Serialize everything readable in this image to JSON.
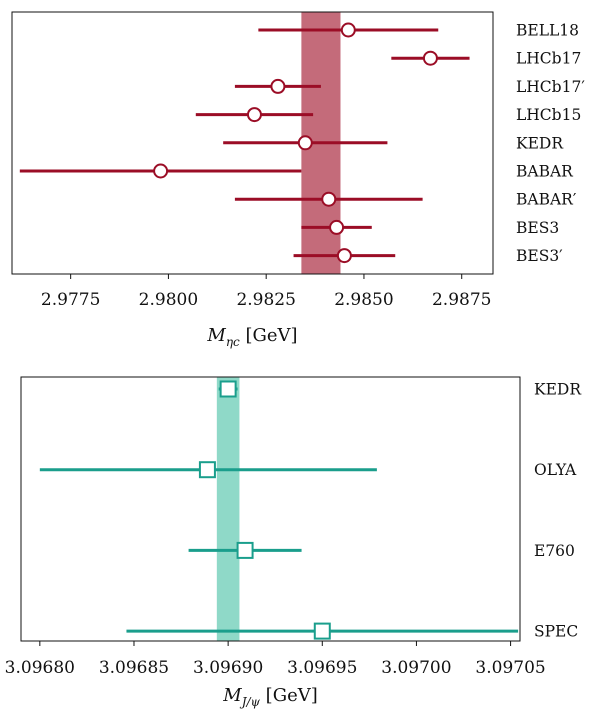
{
  "chart_data": [
    {
      "type": "scatter",
      "variant": "errorbar",
      "title": "",
      "xlabel": "M",
      "xlabel_sub": "ηc",
      "xlabel_unit": "[GeV]",
      "xlim": [
        2.976,
        2.9883
      ],
      "xticks": [
        2.9775,
        2.98,
        2.9825,
        2.985,
        2.9875
      ],
      "xtick_labels": [
        "2.9775",
        "2.9800",
        "2.9825",
        "2.9850",
        "2.9875"
      ],
      "marker": "circle",
      "color": "#9b0d26",
      "band": {
        "low": 2.9834,
        "high": 2.9844,
        "color": "#c46b7a"
      },
      "categories": [
        "BELL18",
        "LHCb17",
        "LHCb17′",
        "LHCb15",
        "KEDR",
        "BABAR",
        "BABAR′",
        "BES3",
        "BES3′"
      ],
      "values": [
        2.9846,
        2.9867,
        2.9828,
        2.9822,
        2.9835,
        2.9798,
        2.9841,
        2.9843,
        2.9845
      ],
      "err_low": [
        2.9823,
        2.9857,
        2.9817,
        2.9807,
        2.9814,
        2.9762,
        2.9817,
        2.9834,
        2.9832
      ],
      "err_high": [
        2.9869,
        2.9877,
        2.9839,
        2.9837,
        2.9856,
        2.9834,
        2.9865,
        2.9852,
        2.9858
      ],
      "grid": false
    },
    {
      "type": "scatter",
      "variant": "errorbar",
      "title": "",
      "xlabel": "M",
      "xlabel_sub": "J/ψ",
      "xlabel_unit": "[GeV]",
      "xlim": [
        3.09679,
        3.097055
      ],
      "xticks": [
        3.0968,
        3.09685,
        3.0969,
        3.09695,
        3.097,
        3.09705
      ],
      "xtick_labels": [
        "3.09680",
        "3.09685",
        "3.09690",
        "3.09695",
        "3.09700",
        "3.09705"
      ],
      "marker": "square",
      "color": "#1a9e8c",
      "band": {
        "low": 3.096894,
        "high": 3.096906,
        "color": "#8fd9c8"
      },
      "categories": [
        "KEDR",
        "OLYA",
        "E760",
        "SPEC"
      ],
      "values": [
        3.0969,
        3.096889,
        3.096909,
        3.09695
      ],
      "err_low": [
        3.096895,
        3.0968,
        3.096879,
        3.096846
      ],
      "err_high": [
        3.096905,
        3.096979,
        3.096939,
        3.097054
      ],
      "grid": false
    }
  ]
}
